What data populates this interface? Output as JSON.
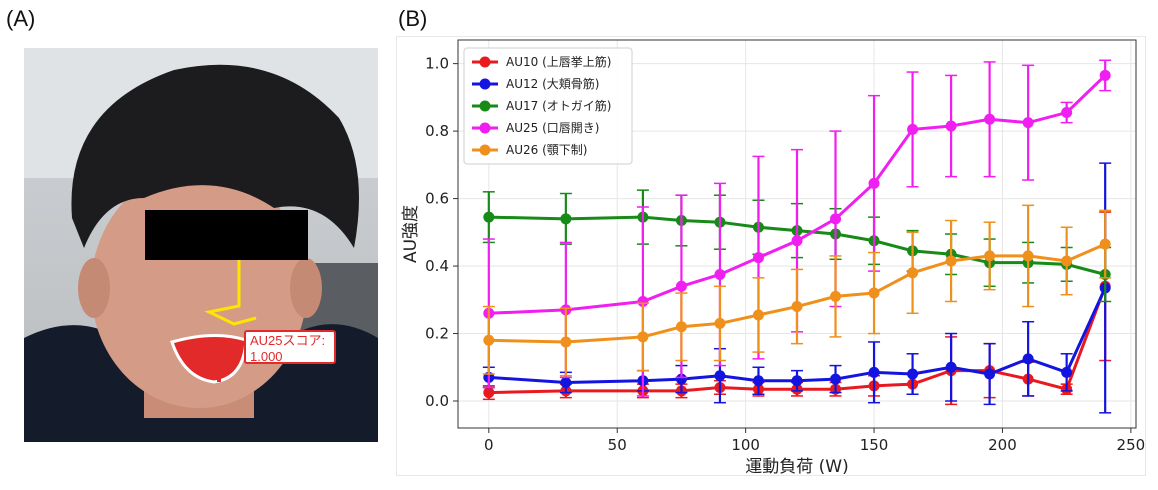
{
  "panels": {
    "a_label": "(A)",
    "b_label": "(B)"
  },
  "photo": {
    "score_line1": "AU25スコア:",
    "score_line2": "1.000",
    "colors": {
      "face_overlay": "#e22a2a",
      "landmark": "#ffe400",
      "mouth_outline": "#ffffff"
    }
  },
  "chart_data": {
    "type": "line",
    "xlabel": "運動負荷 (W)",
    "ylabel": "AU強度",
    "xlim": [
      -12,
      252
    ],
    "ylim": [
      -0.08,
      1.07
    ],
    "xticks": [
      0,
      50,
      100,
      150,
      200,
      250
    ],
    "xtick_labels": [
      "0",
      "50",
      "100",
      "150",
      "200",
      "250"
    ],
    "yticks": [
      0.0,
      0.2,
      0.4,
      0.6,
      0.8,
      1.0
    ],
    "ytick_labels": [
      "0.0",
      "0.2",
      "0.4",
      "0.6",
      "0.8",
      "1.0"
    ],
    "grid": true,
    "legend_position": "top-left",
    "x": [
      0,
      30,
      60,
      75,
      90,
      105,
      120,
      135,
      150,
      165,
      180,
      195,
      210,
      225,
      240
    ],
    "series": [
      {
        "name": "AU10 (上唇挙上筋)",
        "color": "#e8191f",
        "values": [
          0.025,
          0.03,
          0.03,
          0.03,
          0.04,
          0.035,
          0.035,
          0.035,
          0.045,
          0.05,
          0.09,
          0.09,
          0.065,
          0.035,
          0.34
        ],
        "err": [
          0.02,
          0.02,
          0.02,
          0.02,
          0.02,
          0.02,
          0.02,
          0.02,
          0.03,
          0.03,
          0.1,
          0.08,
          0.05,
          0.015,
          0.22
        ]
      },
      {
        "name": "AU12 (大頬骨筋)",
        "color": "#1414e0",
        "values": [
          0.07,
          0.055,
          0.06,
          0.065,
          0.075,
          0.06,
          0.06,
          0.065,
          0.085,
          0.08,
          0.1,
          0.08,
          0.125,
          0.085,
          0.335
        ],
        "err": [
          0.03,
          0.03,
          0.03,
          0.04,
          0.08,
          0.04,
          0.03,
          0.04,
          0.09,
          0.06,
          0.1,
          0.09,
          0.11,
          0.055,
          0.37
        ]
      },
      {
        "name": "AU17 (オトガイ筋)",
        "color": "#178a17",
        "values": [
          0.545,
          0.54,
          0.545,
          0.535,
          0.53,
          0.515,
          0.505,
          0.495,
          0.475,
          0.445,
          0.435,
          0.41,
          0.41,
          0.405,
          0.375
        ],
        "err": [
          0.075,
          0.075,
          0.08,
          0.075,
          0.08,
          0.08,
          0.08,
          0.075,
          0.07,
          0.06,
          0.06,
          0.07,
          0.06,
          0.05,
          0.08
        ]
      },
      {
        "name": "AU25 (口唇開き)",
        "color": "#f01ef0",
        "values": [
          0.26,
          0.27,
          0.295,
          0.34,
          0.375,
          0.425,
          0.475,
          0.54,
          0.645,
          0.805,
          0.815,
          0.835,
          0.825,
          0.855,
          0.965
        ],
        "err": [
          0.22,
          0.2,
          0.28,
          0.27,
          0.27,
          0.3,
          0.27,
          0.26,
          0.26,
          0.17,
          0.15,
          0.17,
          0.17,
          0.03,
          0.045
        ]
      },
      {
        "name": "AU26 (顎下制)",
        "color": "#f0901c",
        "values": [
          0.18,
          0.175,
          0.19,
          0.22,
          0.23,
          0.255,
          0.28,
          0.31,
          0.32,
          0.38,
          0.415,
          0.43,
          0.43,
          0.415,
          0.465
        ],
        "err": [
          0.1,
          0.1,
          0.1,
          0.1,
          0.11,
          0.11,
          0.11,
          0.12,
          0.12,
          0.12,
          0.12,
          0.1,
          0.15,
          0.1,
          0.1
        ]
      }
    ]
  }
}
